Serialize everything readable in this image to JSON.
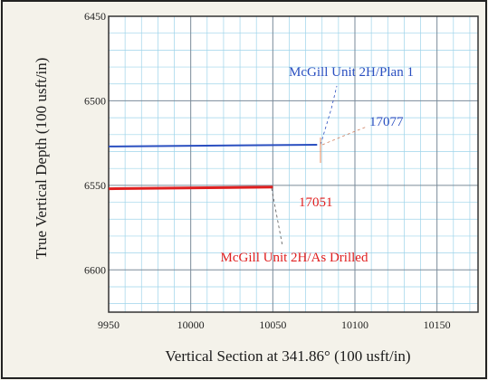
{
  "chart_data": {
    "type": "line",
    "title": "",
    "xlabel": "Vertical Section at 341.86° (100 usft/in)",
    "ylabel": "True Vertical Depth (100 usft/in)",
    "xlim": [
      9950,
      10175
    ],
    "ylim": [
      6450,
      6625
    ],
    "y_inverted": true,
    "grid": true,
    "x_ticks": [
      "9950",
      "10000",
      "10050",
      "10100",
      "10150"
    ],
    "y_ticks": [
      "6450",
      "6500",
      "6550",
      "6600"
    ],
    "series": [
      {
        "name": "McGill Unit 2H/Plan 1",
        "color": "#2a4fc0",
        "x": [
          9950,
          10077
        ],
        "y": [
          6527,
          6526
        ]
      },
      {
        "name": "McGill Unit 2H/As Drilled",
        "color": "#e02020",
        "x": [
          9950,
          10050
        ],
        "y": [
          6552,
          6551
        ]
      }
    ],
    "annotations": [
      {
        "text": "17077",
        "color": "#2a4fc0"
      },
      {
        "text": "17051",
        "color": "#e02020"
      }
    ]
  }
}
